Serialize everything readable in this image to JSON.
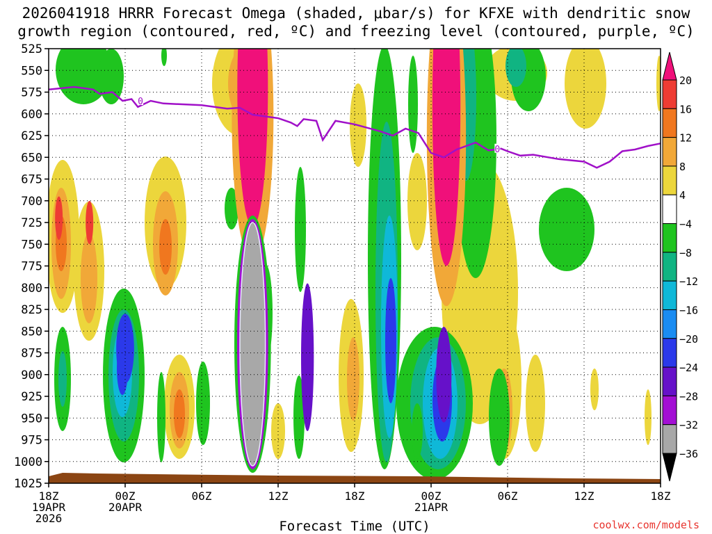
{
  "title_line1": "2026041918 HRRR Forecast Omega (shaded, μbar/s) for KFXE with dendritic snow",
  "title_line2": "growth region (contoured, red, ºC) and freezing level (contoured, purple, ºC)",
  "credit": "coolwx.com/models",
  "chart_data": {
    "type": "heatmap",
    "title": "2026041918 HRRR Forecast Omega (shaded, μbar/s) for KFXE with dendritic snow growth region (contoured, red, ºC) and freezing level (contoured, purple, ºC)",
    "xlabel": "Forecast Time (UTC)",
    "ylabel": "",
    "x_ticks": [
      {
        "hour": 0,
        "lines": [
          "18Z",
          "19APR",
          "2026"
        ]
      },
      {
        "hour": 6,
        "lines": [
          "00Z",
          "20APR"
        ]
      },
      {
        "hour": 12,
        "lines": [
          "06Z"
        ]
      },
      {
        "hour": 18,
        "lines": [
          "12Z"
        ]
      },
      {
        "hour": 24,
        "lines": [
          "18Z"
        ]
      },
      {
        "hour": 30,
        "lines": [
          "00Z",
          "21APR"
        ]
      },
      {
        "hour": 36,
        "lines": [
          "06Z"
        ]
      },
      {
        "hour": 42,
        "lines": [
          "12Z"
        ]
      },
      {
        "hour": 48,
        "lines": [
          "18Z"
        ]
      }
    ],
    "xlim_hours": [
      0,
      48
    ],
    "y_ticks": [
      "525",
      "550",
      "575",
      "600",
      "625",
      "650",
      "675",
      "700",
      "725",
      "750",
      "775",
      "800",
      "825",
      "850",
      "875",
      "900",
      "925",
      "950",
      "975",
      "1000",
      "1025"
    ],
    "ylim_hPa": [
      525,
      1025
    ],
    "grid": "dotted",
    "colorbar": {
      "labels": [
        "20",
        "16",
        "12",
        "8",
        "4",
        "−4",
        "−8",
        "−12",
        "−16",
        "−20",
        "−24",
        "−28",
        "−32",
        "−36"
      ],
      "colors": [
        "#f0107a",
        "#ee3c33",
        "#f0771f",
        "#f1a838",
        "#ecd63c",
        "#ffffff",
        "#1fc41f",
        "#10b482",
        "#0fb8d8",
        "#1a8cf2",
        "#2b39ea",
        "#6611c9",
        "#a30fd4",
        "#a8a8a8",
        "#000000"
      ]
    },
    "freezing_level_hPa": [
      [
        0,
        572
      ],
      [
        2,
        569
      ],
      [
        3.5,
        572
      ],
      [
        4,
        577
      ],
      [
        5,
        575
      ],
      [
        5.8,
        585
      ],
      [
        6.5,
        583
      ],
      [
        7,
        592
      ],
      [
        8,
        585
      ],
      [
        9,
        588
      ],
      [
        12,
        590
      ],
      [
        14,
        594
      ],
      [
        15,
        593
      ],
      [
        16,
        601
      ],
      [
        18,
        605
      ],
      [
        19,
        610
      ],
      [
        19.5,
        614
      ],
      [
        20,
        606
      ],
      [
        21,
        608
      ],
      [
        21.5,
        630
      ],
      [
        22.5,
        608
      ],
      [
        24,
        612
      ],
      [
        26,
        620
      ],
      [
        27,
        625
      ],
      [
        28,
        617
      ],
      [
        29,
        622
      ],
      [
        30,
        645
      ],
      [
        31,
        650
      ],
      [
        32,
        641
      ],
      [
        33.5,
        633
      ],
      [
        34.5,
        642
      ],
      [
        35.5,
        640
      ],
      [
        36,
        643
      ],
      [
        37,
        648
      ],
      [
        38,
        647
      ],
      [
        40,
        652
      ],
      [
        42,
        655
      ],
      [
        43,
        662
      ],
      [
        44,
        655
      ],
      [
        45,
        643
      ],
      [
        46,
        641
      ],
      [
        47,
        637
      ],
      [
        48,
        634
      ]
    ],
    "freezing_level_labels": [
      {
        "hour": 7.2,
        "hPa": 585,
        "text": "0"
      },
      {
        "hour": 35.2,
        "hPa": 640,
        "text": "0"
      }
    ],
    "omega_features": [
      {
        "type": "ellipse",
        "hour": 16.0,
        "hPa": 570,
        "rx": 1.2,
        "ry": 160,
        "value": 20
      },
      {
        "type": "ellipse",
        "hour": 31.2,
        "hPa": 590,
        "rx": 1.1,
        "ry": 185,
        "value": 20
      },
      {
        "type": "ellipse",
        "hour": 16.0,
        "hPa": 865,
        "rx": 1.0,
        "ry": 140,
        "value": -36
      },
      {
        "type": "ellipse",
        "hour": 20.3,
        "hPa": 880,
        "rx": 0.5,
        "ry": 85,
        "value": -28
      },
      {
        "type": "ellipse",
        "hour": 31.0,
        "hPa": 900,
        "rx": 0.6,
        "ry": 55,
        "value": -28
      },
      {
        "type": "ellipse",
        "hour": 6.0,
        "hPa": 870,
        "rx": 0.7,
        "ry": 40,
        "value": -24
      },
      {
        "type": "ellipse",
        "hour": 0.8,
        "hPa": 720,
        "rx": 0.3,
        "ry": 25,
        "value": 16
      },
      {
        "type": "ellipse",
        "hour": 3.2,
        "hPa": 725,
        "rx": 0.3,
        "ry": 25,
        "value": 16
      }
    ]
  }
}
